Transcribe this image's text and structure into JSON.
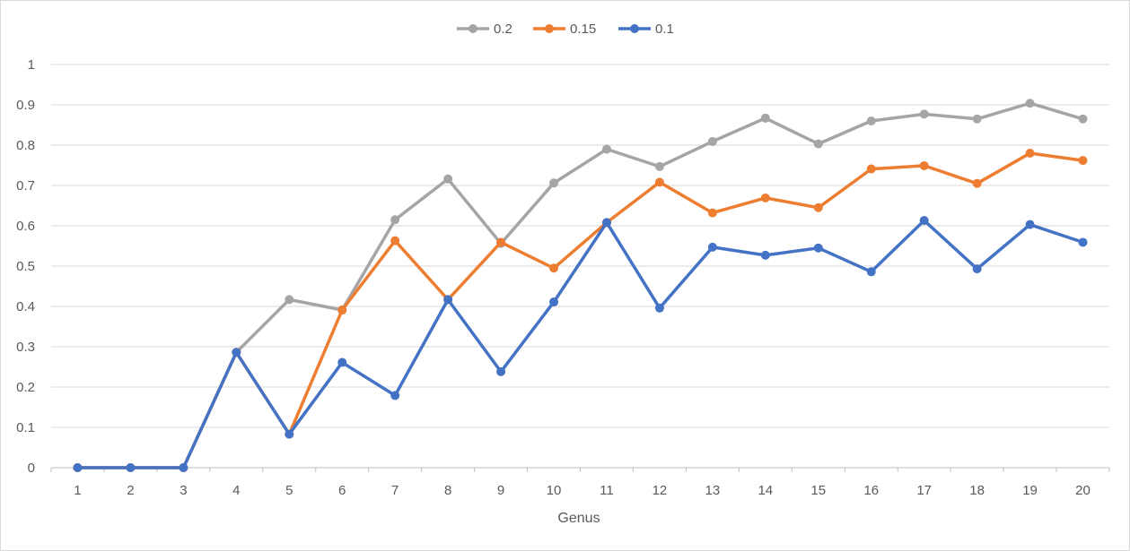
{
  "chart_data": {
    "type": "line",
    "title": "",
    "xlabel": "Genus",
    "ylabel": "",
    "ylim": [
      0,
      1
    ],
    "yticks": [
      "0",
      "0.1",
      "0.2",
      "0.3",
      "0.4",
      "0.5",
      "0.6",
      "0.7",
      "0.8",
      "0.9",
      "1"
    ],
    "categories": [
      "1",
      "2",
      "3",
      "4",
      "5",
      "6",
      "7",
      "8",
      "9",
      "10",
      "11",
      "12",
      "13",
      "14",
      "15",
      "16",
      "17",
      "18",
      "19",
      "20"
    ],
    "grid": true,
    "legend_position": "top",
    "series": [
      {
        "name": "0.2",
        "color": "#a5a5a5",
        "values": [
          0,
          0,
          0,
          0.286,
          0.417,
          0.391,
          0.615,
          0.716,
          0.556,
          0.706,
          0.79,
          0.747,
          0.809,
          0.867,
          0.803,
          0.86,
          0.877,
          0.865,
          0.904,
          0.865
        ]
      },
      {
        "name": "0.15",
        "color": "#ed7d31",
        "values": [
          0,
          0,
          0,
          0.286,
          0.083,
          0.391,
          0.563,
          0.417,
          0.559,
          0.495,
          0.608,
          0.708,
          0.632,
          0.669,
          0.645,
          0.741,
          0.749,
          0.705,
          0.78,
          0.762
        ]
      },
      {
        "name": "0.1",
        "color": "#4472c4",
        "values": [
          0,
          0,
          0,
          0.286,
          0.083,
          0.261,
          0.179,
          0.417,
          0.238,
          0.411,
          0.608,
          0.396,
          0.547,
          0.527,
          0.545,
          0.486,
          0.613,
          0.493,
          0.603,
          0.559
        ]
      }
    ]
  }
}
